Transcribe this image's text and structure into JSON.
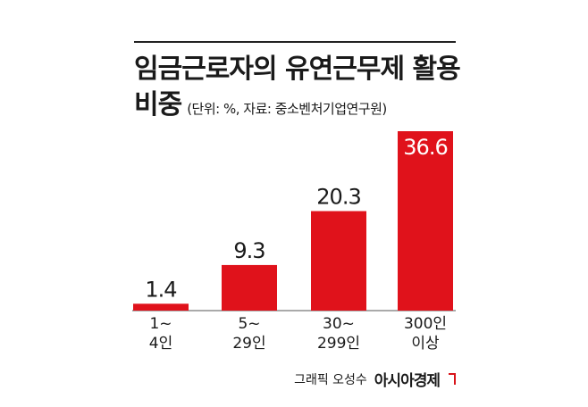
{
  "title_line1": "임금근로자의 유연근무제 활용",
  "title_line2": "비중",
  "unit_note": "(단위: %, 자료: 중소벤처기업연구원)",
  "credit": "그래픽 오성수",
  "brand": "아시아경제",
  "colors": {
    "bar": "#e0121b",
    "text": "#1a1a1a",
    "rule": "#222222"
  },
  "chart_data": {
    "type": "bar",
    "categories": [
      [
        "1~",
        "4인"
      ],
      [
        "5~",
        "29인"
      ],
      [
        "30~",
        "299인"
      ],
      [
        "300인",
        "이상"
      ]
    ],
    "values": [
      1.4,
      9.3,
      20.3,
      36.6
    ],
    "value_labels": [
      "1.4",
      "9.3",
      "20.3",
      "36.6"
    ],
    "ylim": [
      0,
      36.6
    ],
    "grid": false,
    "legend": "none"
  }
}
